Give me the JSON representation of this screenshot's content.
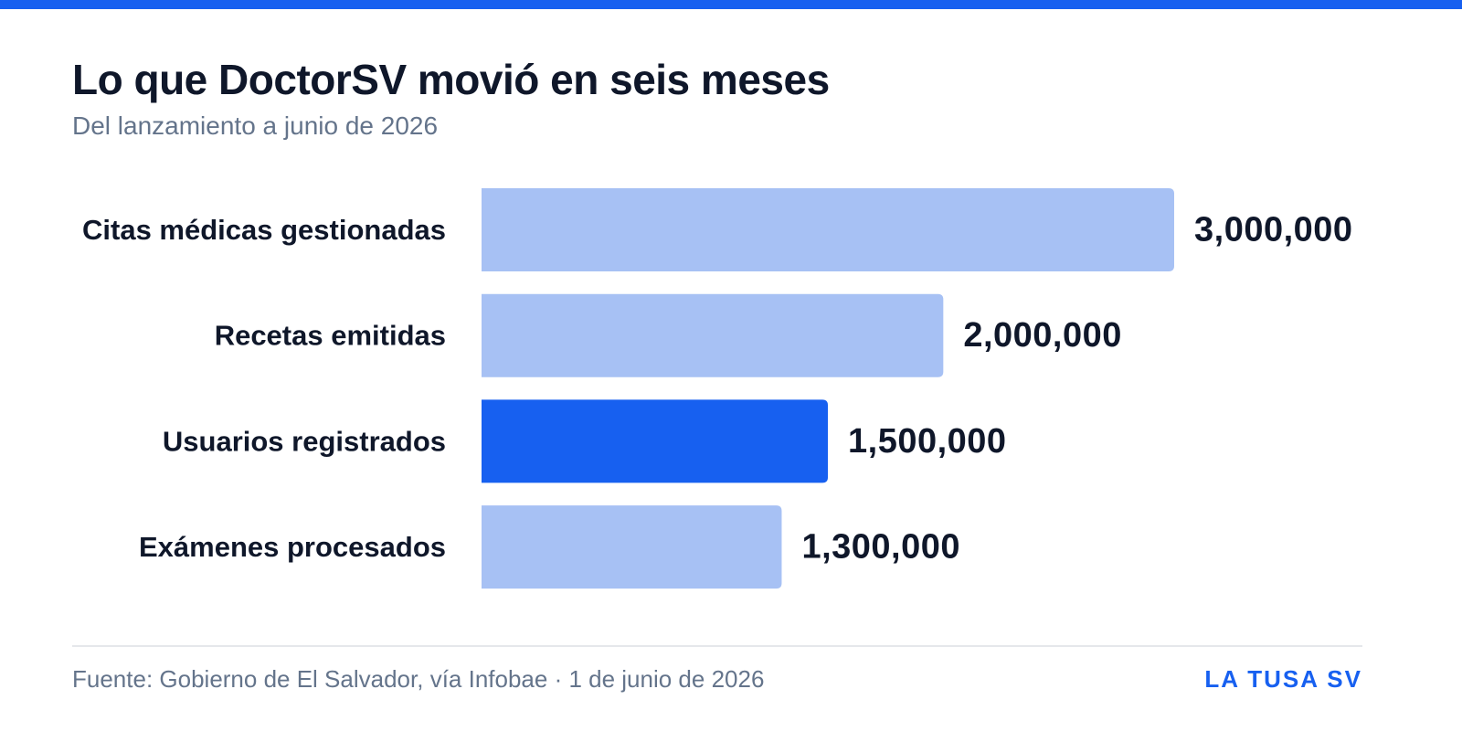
{
  "header": {
    "title": "Lo que DoctorSV movió en seis meses",
    "subtitle": "Del lanzamiento a junio de 2026"
  },
  "footer": {
    "source": "Fuente: Gobierno de El Salvador, vía Infobae · 1 de junio de 2026",
    "brand": "LA TUSA SV"
  },
  "colors": {
    "accent": "#1760f0",
    "bar_default": "#a7c1f4",
    "bar_highlight": "#1760f0",
    "text": "#0f172a",
    "muted": "#64748b"
  },
  "chart_data": {
    "type": "bar",
    "orientation": "horizontal",
    "categories": [
      "Citas médicas gestionadas",
      "Recetas emitidas",
      "Usuarios registrados",
      "Exámenes procesados"
    ],
    "values": [
      3000000,
      2000000,
      1500000,
      1300000
    ],
    "value_labels": [
      "3,000,000",
      "2,000,000",
      "1,500,000",
      "1,300,000"
    ],
    "highlight_index": 2,
    "xlim": [
      0,
      3000000
    ],
    "grid": false,
    "legend": "none"
  }
}
